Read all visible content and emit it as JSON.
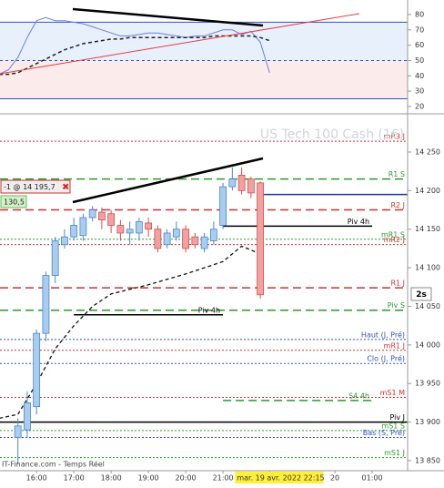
{
  "title": "US Tech 100 Cash (1€)",
  "source": "IT-Finance.com - Temps Réel",
  "position_label": "-1 @ 14 195,7",
  "pnl_label": "130,5",
  "countdown_label": "2s",
  "chart_data": [
    {
      "type": "line",
      "x": [
        15.0,
        15.25,
        15.5,
        15.75,
        16.0,
        16.25,
        16.5,
        16.75,
        17.0,
        17.25,
        17.5,
        17.75,
        18.0,
        18.25,
        18.5,
        18.75,
        19.0,
        19.25,
        19.5,
        19.75,
        20.0,
        20.25,
        20.5,
        20.75,
        21.0,
        21.25,
        21.5,
        21.75,
        22.0,
        22.25
      ],
      "series": [
        {
          "color": "#6a7ee8",
          "values": [
            41,
            44,
            52,
            65,
            76,
            78,
            76,
            76,
            75,
            74,
            72,
            70,
            68,
            66,
            66,
            67,
            68,
            68,
            67,
            66,
            65,
            66,
            66,
            68,
            70,
            70,
            67,
            69,
            62,
            42
          ]
        },
        {
          "color": "#222222",
          "dash": true,
          "values": [
            41,
            41,
            42,
            45,
            48,
            51,
            54,
            57,
            59,
            61,
            62,
            63,
            64,
            64,
            65,
            65,
            65,
            65,
            65,
            65,
            65,
            65,
            65,
            66,
            66,
            66,
            66,
            66,
            65,
            63
          ]
        }
      ],
      "levels": [
        75,
        50,
        25
      ],
      "xlim": [
        15.02,
        25.95
      ],
      "ylim": [
        15.2,
        89.5
      ],
      "yticks": [
        80,
        70,
        60,
        50,
        40,
        30,
        20
      ]
    },
    {
      "type": "candlestick",
      "x": [
        15.5,
        15.75,
        16.0,
        16.25,
        16.5,
        16.75,
        17.0,
        17.25,
        17.5,
        17.75,
        18.0,
        18.25,
        18.5,
        18.75,
        19.0,
        19.25,
        19.5,
        19.75,
        20.0,
        20.25,
        20.5,
        20.75,
        21.0,
        21.25,
        21.5,
        21.75,
        22.0
      ],
      "open": [
        13880,
        13890,
        13920,
        14015,
        14090,
        14130,
        14140,
        14142,
        14165,
        14172,
        14170,
        14155,
        14145,
        14145,
        14158,
        14150,
        14130,
        14140,
        14150,
        14140,
        14125,
        14135,
        14155,
        14205,
        14220,
        14215,
        14210
      ],
      "high": [
        13905,
        13940,
        14020,
        14095,
        14140,
        14150,
        14165,
        14170,
        14180,
        14178,
        14175,
        14162,
        14160,
        14165,
        14165,
        14155,
        14150,
        14160,
        14155,
        14145,
        14145,
        14160,
        14210,
        14230,
        14230,
        14218,
        14212
      ],
      "low": [
        13845,
        13880,
        13910,
        14005,
        14080,
        14125,
        14135,
        14135,
        14160,
        14150,
        14145,
        14135,
        14130,
        14135,
        14140,
        14120,
        14125,
        14135,
        14120,
        14125,
        14120,
        14130,
        14150,
        14200,
        14195,
        14190,
        14060
      ],
      "close": [
        13895,
        13925,
        14015,
        14090,
        14135,
        14140,
        14155,
        14165,
        14175,
        14162,
        14155,
        14145,
        14150,
        14160,
        14150,
        14125,
        14145,
        14150,
        14125,
        14130,
        14140,
        14150,
        14205,
        14215,
        14200,
        14197,
        14065
      ],
      "ma": {
        "x": [
          15.0,
          15.5,
          16.0,
          16.5,
          17.0,
          17.5,
          18.0,
          18.5,
          19.0,
          19.5,
          20.0,
          20.5,
          21.0,
          21.5,
          22.0
        ],
        "values": [
          13905,
          13910,
          13950,
          13995,
          14025,
          14050,
          14066,
          14072,
          14078,
          14085,
          14092,
          14100,
          14108,
          14128,
          14118
        ]
      },
      "current_price": 14195,
      "levels": [
        {
          "label": "mR3 J",
          "value": 14264,
          "color": "#d03030",
          "style": "dotted"
        },
        {
          "label": "R1 S",
          "value": 14215,
          "color": "#2a9a2a",
          "style": "dashed"
        },
        {
          "label": "R2 J",
          "value": 14175,
          "color": "#d03030",
          "style": "dashed"
        },
        {
          "label": "Piv 4h",
          "value": 14154,
          "color": "#000000",
          "style": "solid",
          "start": 21.0,
          "end": 25.0
        },
        {
          "label": "mR1 S",
          "value": 14137,
          "color": "#2a9a2a",
          "style": "dotted"
        },
        {
          "label": "mR2 J",
          "value": 14130,
          "color": "#d03030",
          "style": "dotted"
        },
        {
          "label": "R1 J",
          "value": 14074,
          "color": "#d03030",
          "style": "dashed"
        },
        {
          "label": "Piv S",
          "value": 14045,
          "color": "#2a9a2a",
          "style": "dashed"
        },
        {
          "label": "Piv 4h",
          "value": 14039,
          "color": "#000000",
          "style": "solid",
          "start": 17.0,
          "end": 21.0
        },
        {
          "label": "Haut (J, Pré)",
          "value": 14007,
          "color": "#3050c0",
          "style": "dotted"
        },
        {
          "label": "mR1 J",
          "value": 13993,
          "color": "#d03030",
          "style": "dotted"
        },
        {
          "label": "Clo (J, Pré)",
          "value": 13976,
          "color": "#3050c0",
          "style": "dotted"
        },
        {
          "label": "mS1 M",
          "value": 13932,
          "color": "#d03030",
          "style": "dotted"
        },
        {
          "label": "S4 4h",
          "value": 13928,
          "color": "#2a9a2a",
          "style": "dashed",
          "start": 21.0,
          "end": 25.0
        },
        {
          "label": "Piv J",
          "value": 13900,
          "color": "#000000",
          "style": "solid"
        },
        {
          "label": "mS1 S",
          "value": 13889,
          "color": "#2a9a2a",
          "style": "dotted"
        },
        {
          "label": "Bas (S, Pré)",
          "value": 13880,
          "color": "#3050c0",
          "style": "dotted"
        },
        {
          "label": "mS1 J",
          "value": 13854,
          "color": "#2a9a2a",
          "style": "dotted"
        }
      ],
      "xlim": [
        15.02,
        25.95
      ],
      "ylim": [
        13837,
        14296
      ],
      "yticks": [
        {
          "value": 14250,
          "label": "14 250"
        },
        {
          "value": 14200,
          "label": "14 200"
        },
        {
          "value": 14150,
          "label": "14 150"
        },
        {
          "value": 14100,
          "label": "14 100"
        },
        {
          "value": 14050,
          "label": "14 050"
        },
        {
          "value": 14000,
          "label": "14 000"
        },
        {
          "value": 13950,
          "label": "13 950"
        },
        {
          "value": 13900,
          "label": "13 900"
        },
        {
          "value": 13850,
          "label": "13 850"
        }
      ],
      "xticks": [
        {
          "value": 16,
          "label": "16:00"
        },
        {
          "value": 17,
          "label": "17:00"
        },
        {
          "value": 18,
          "label": "18:00"
        },
        {
          "value": 19,
          "label": "19:00"
        },
        {
          "value": 20,
          "label": "20:00"
        },
        {
          "value": 21,
          "label": "21:00"
        },
        {
          "value": 22.25,
          "label": "mar. 19 avr. 2022 22:15",
          "highlight": true
        },
        {
          "value": 24,
          "label": "20"
        },
        {
          "value": 25,
          "label": "01:00"
        }
      ]
    }
  ]
}
